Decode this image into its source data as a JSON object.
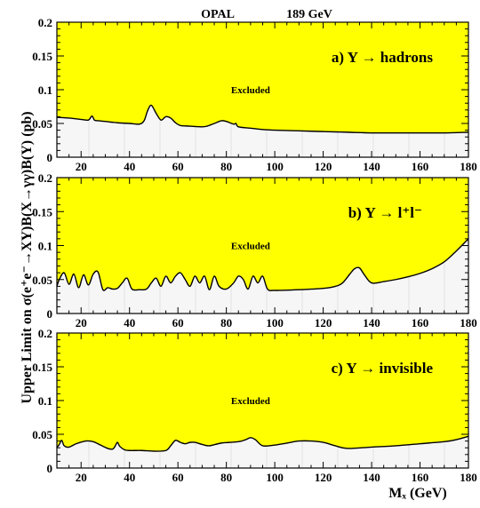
{
  "header": {
    "experiment": "OPAL",
    "energy": "189 GeV"
  },
  "y_axis_title": "Upper Limit on σ(e⁺e⁻→XY)B(X→γγ)B(Y) (pb)",
  "x_axis_title": "Mₓ (GeV)",
  "colors": {
    "excluded_fill": "#ffff00",
    "allowed_fill": "#f6f6f6",
    "allowed_hatch": "#e2e2e2",
    "frame": "#000000",
    "curve": "#000000"
  },
  "chart_data": [
    {
      "type": "area",
      "title": "a) Y → hadrons",
      "region_label": "Excluded",
      "xlim": [
        10,
        180
      ],
      "ylim": [
        0,
        0.2
      ],
      "x_ticks": [
        "20",
        "40",
        "60",
        "80",
        "100",
        "120",
        "140",
        "160",
        "180"
      ],
      "y_ticks": [
        "0",
        "0.05",
        "0.1",
        "0.15",
        "0.2"
      ],
      "x": [
        10,
        15,
        20,
        23,
        24.5,
        25.5,
        27,
        30,
        35,
        40,
        44,
        46,
        47.5,
        49,
        51,
        53,
        55,
        57,
        59,
        61,
        65,
        70,
        72,
        75,
        78,
        80,
        83,
        84,
        85,
        90,
        95,
        100,
        110,
        120,
        130,
        140,
        150,
        160,
        170,
        180
      ],
      "y": [
        0.059,
        0.058,
        0.056,
        0.055,
        0.061,
        0.055,
        0.054,
        0.053,
        0.051,
        0.05,
        0.049,
        0.054,
        0.069,
        0.077,
        0.065,
        0.055,
        0.06,
        0.058,
        0.051,
        0.047,
        0.046,
        0.045,
        0.046,
        0.05,
        0.054,
        0.053,
        0.049,
        0.05,
        0.045,
        0.043,
        0.041,
        0.04,
        0.039,
        0.038,
        0.037,
        0.036,
        0.036,
        0.036,
        0.036,
        0.037
      ]
    },
    {
      "type": "area",
      "title": "b) Y → l⁺l⁻",
      "region_label": "Excluded",
      "xlim": [
        10,
        180
      ],
      "ylim": [
        0,
        0.2
      ],
      "x_ticks": [
        "20",
        "40",
        "60",
        "80",
        "100",
        "120",
        "140",
        "160",
        "180"
      ],
      "y_ticks": [
        "0",
        "0.05",
        "0.1",
        "0.15",
        "0.2"
      ],
      "x": [
        10,
        11,
        13,
        15,
        17,
        19,
        21,
        23,
        25,
        27,
        29,
        31,
        33,
        35,
        37,
        39,
        41,
        44,
        47,
        49,
        51,
        53,
        55,
        57,
        59,
        61,
        63,
        65,
        67,
        69,
        71,
        73,
        75,
        77,
        80,
        83,
        85,
        87,
        89,
        91,
        93,
        95,
        97,
        100,
        110,
        120,
        125,
        128,
        131,
        133,
        135,
        137,
        140,
        145,
        150,
        155,
        160,
        165,
        170,
        175,
        180
      ],
      "y": [
        0.04,
        0.05,
        0.06,
        0.043,
        0.058,
        0.038,
        0.057,
        0.042,
        0.058,
        0.061,
        0.035,
        0.038,
        0.036,
        0.037,
        0.045,
        0.052,
        0.036,
        0.035,
        0.036,
        0.045,
        0.052,
        0.04,
        0.055,
        0.045,
        0.055,
        0.06,
        0.05,
        0.04,
        0.055,
        0.045,
        0.055,
        0.035,
        0.055,
        0.04,
        0.036,
        0.045,
        0.055,
        0.05,
        0.036,
        0.055,
        0.045,
        0.055,
        0.036,
        0.034,
        0.035,
        0.037,
        0.04,
        0.045,
        0.058,
        0.066,
        0.067,
        0.057,
        0.045,
        0.047,
        0.05,
        0.054,
        0.059,
        0.066,
        0.076,
        0.092,
        0.11
      ]
    },
    {
      "type": "area",
      "title": "c) Y → invisible",
      "region_label": "Excluded",
      "xlim": [
        10,
        180
      ],
      "ylim": [
        0,
        0.2
      ],
      "x_ticks": [
        "20",
        "40",
        "60",
        "80",
        "100",
        "120",
        "140",
        "160",
        "180"
      ],
      "y_ticks": [
        "0",
        "0.05",
        "0.1",
        "0.15",
        "0.2"
      ],
      "x": [
        10,
        11,
        12,
        13,
        15,
        18,
        22,
        25,
        28,
        31,
        33,
        34,
        35,
        36,
        38,
        40,
        45,
        50,
        55,
        57,
        59,
        61,
        63,
        65,
        67,
        70,
        73,
        78,
        85,
        88,
        90,
        92,
        95,
        100,
        105,
        110,
        115,
        120,
        125,
        130,
        140,
        150,
        160,
        170,
        175,
        180
      ],
      "y": [
        0.03,
        0.035,
        0.041,
        0.033,
        0.031,
        0.036,
        0.04,
        0.039,
        0.034,
        0.029,
        0.028,
        0.032,
        0.038,
        0.032,
        0.027,
        0.026,
        0.026,
        0.025,
        0.026,
        0.033,
        0.041,
        0.038,
        0.036,
        0.038,
        0.038,
        0.035,
        0.033,
        0.037,
        0.039,
        0.042,
        0.045,
        0.042,
        0.033,
        0.034,
        0.037,
        0.04,
        0.04,
        0.038,
        0.033,
        0.029,
        0.031,
        0.033,
        0.036,
        0.039,
        0.042,
        0.047
      ]
    }
  ]
}
